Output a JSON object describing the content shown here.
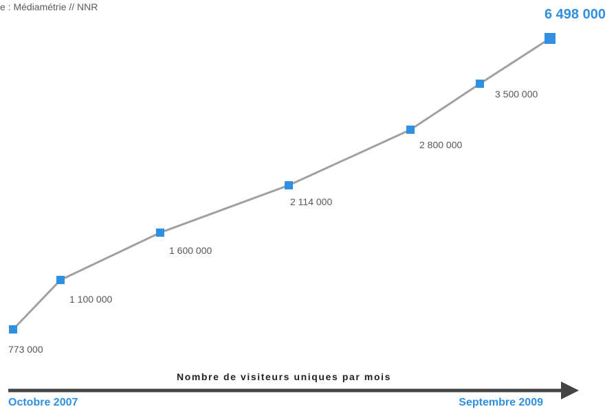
{
  "source_text": "e : Médiamétrie // NNR",
  "axis": {
    "caption": "Nombre de visiteurs uniques par mois",
    "start_label": "Octobre 2007",
    "end_label": "Septembre 2009"
  },
  "chart_data": {
    "type": "line",
    "values": [
      773000,
      1100000,
      1600000,
      2114000,
      2800000,
      3500000,
      6498000
    ],
    "labels": [
      "773 000",
      "1 100 000",
      "1 600 000",
      "2 114 000",
      "2 800 000",
      "3 500 000",
      "6 498 000"
    ],
    "line_color": "#a0a0a0",
    "marker_color": "#2f8fe0",
    "highlight_color": "#2f8fe0",
    "grid": false
  }
}
